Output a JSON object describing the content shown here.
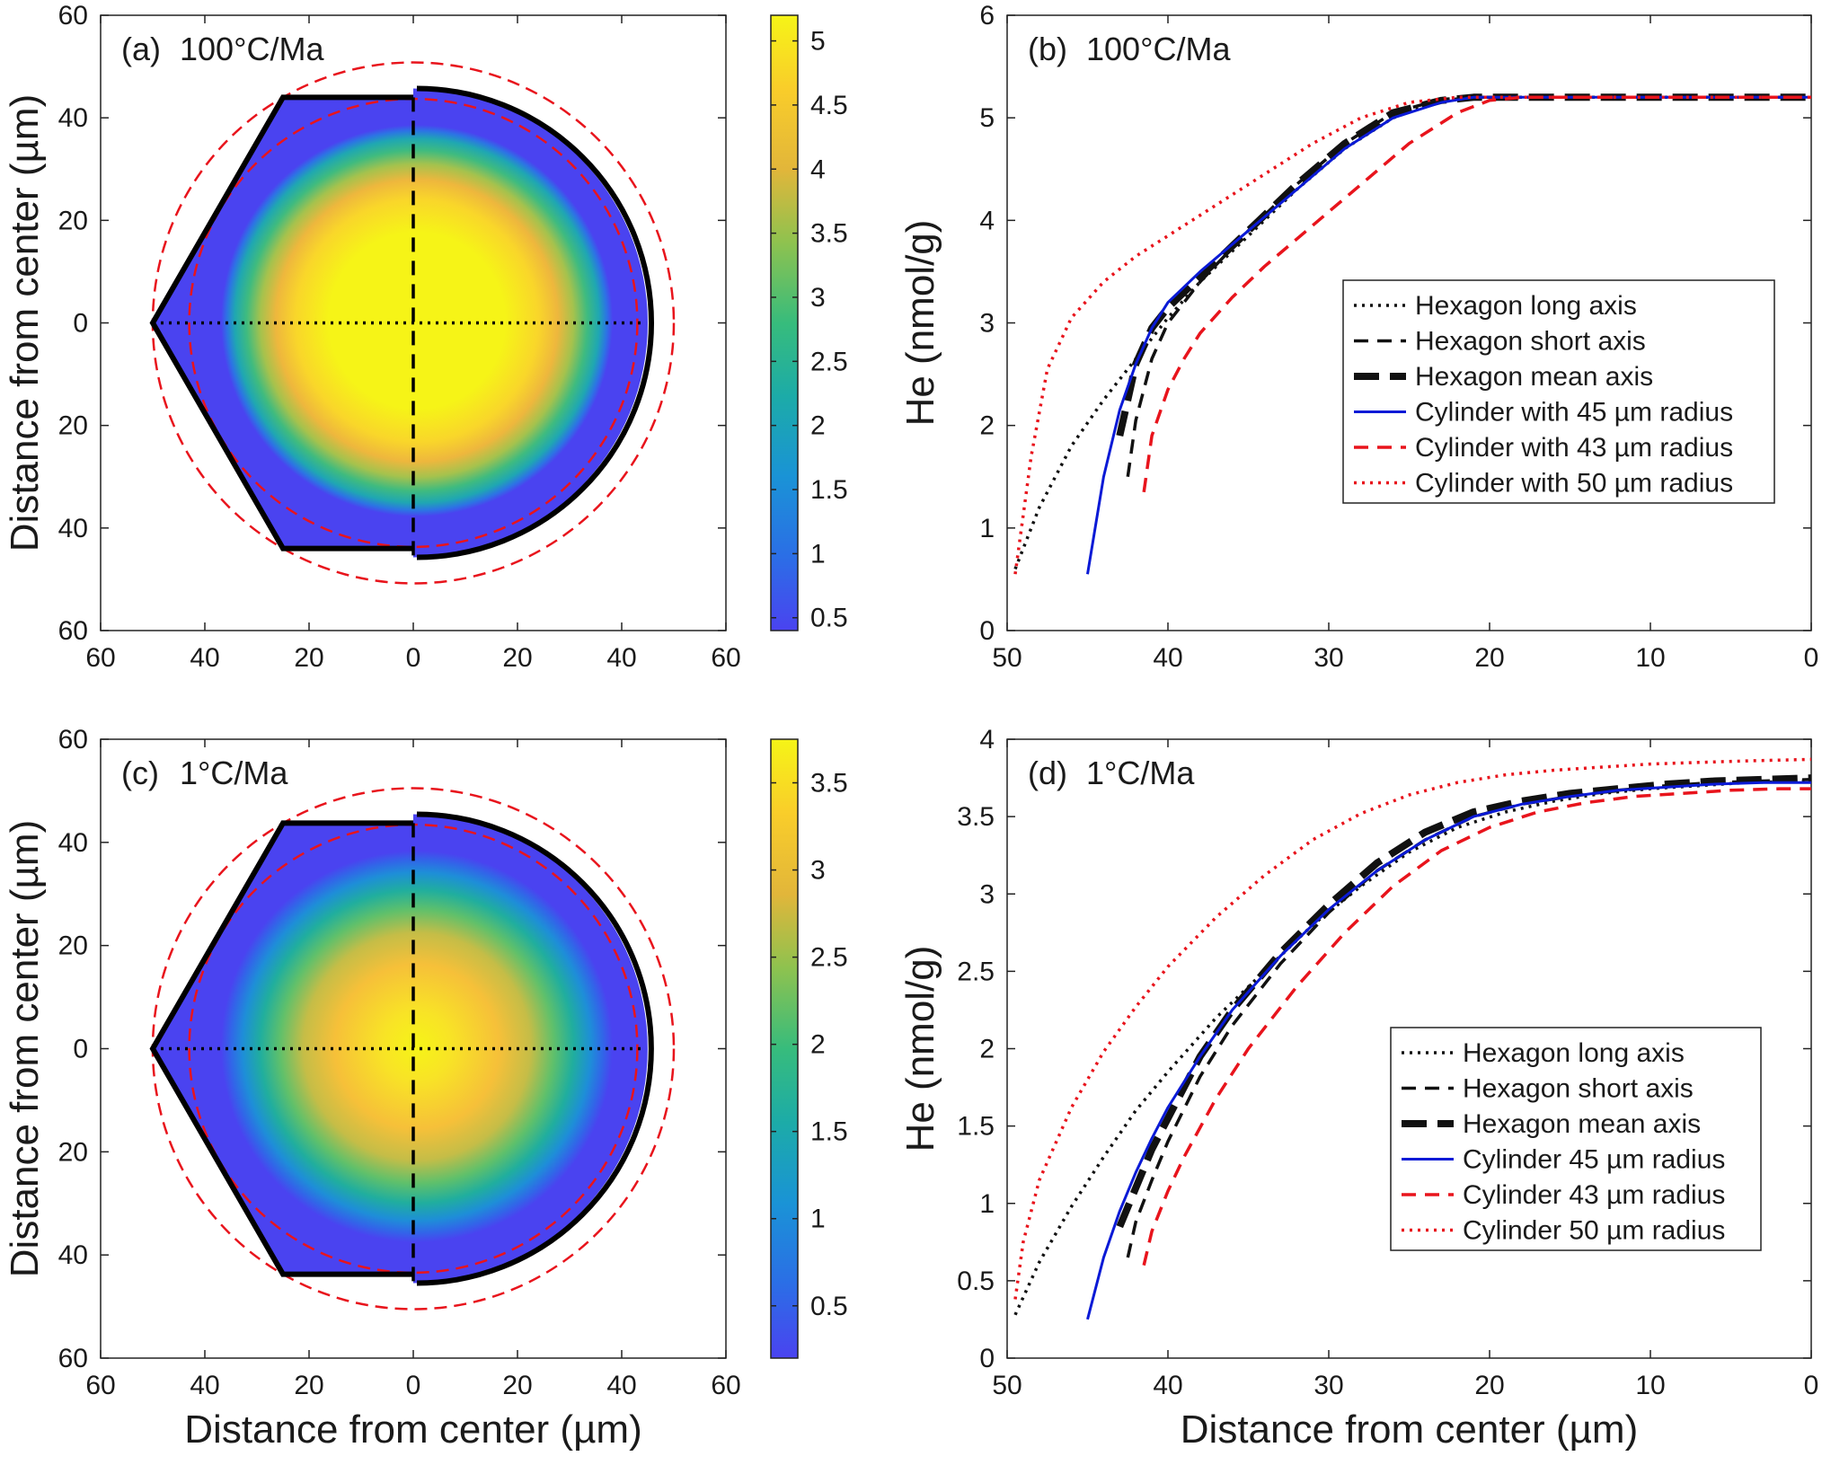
{
  "chart_data": [
    {
      "panel": "a",
      "type": "heatmap",
      "label": "(a)",
      "title": "100°C/Ma",
      "xlabel": "",
      "ylabel": "Distance from center (µm)",
      "xlim": [
        -60,
        60
      ],
      "ylim": [
        -60,
        60
      ],
      "x_ticks": [
        -60,
        -40,
        -20,
        0,
        20,
        40,
        60
      ],
      "x_tick_labels": [
        "60",
        "40",
        "20",
        "0",
        "20",
        "40",
        "60"
      ],
      "y_ticks": [
        60,
        40,
        20,
        0,
        -20,
        -40,
        -60
      ],
      "y_tick_labels": [
        "60",
        "40",
        "20",
        "0",
        "20",
        "40",
        "60"
      ],
      "hexagon_circumradius": 50,
      "hexagon_apothem": 43.3,
      "cylinder_radius": 45,
      "red_circle_radii": [
        43,
        50
      ],
      "color_min": 0.4,
      "color_max": 5.2,
      "colorbar_ticks": [
        0.5,
        1,
        1.5,
        2,
        2.5,
        3,
        3.5,
        4,
        4.5,
        5
      ],
      "colorbar_tick_labels": [
        "0.5",
        "1",
        "1.5",
        "2",
        "2.5",
        "3",
        "3.5",
        "4",
        "4.5",
        "5"
      ]
    },
    {
      "panel": "b",
      "type": "line",
      "label": "(b)",
      "title": "100°C/Ma",
      "xlabel": "",
      "ylabel": "He (nmol/g)",
      "xlim": [
        50,
        0
      ],
      "ylim": [
        0,
        6
      ],
      "x_ticks": [
        50,
        40,
        30,
        20,
        10,
        0
      ],
      "x_tick_labels": [
        "50",
        "40",
        "30",
        "20",
        "10",
        "0"
      ],
      "y_ticks": [
        0,
        1,
        2,
        3,
        4,
        5,
        6
      ],
      "y_tick_labels": [
        "0",
        "1",
        "2",
        "3",
        "4",
        "5",
        "6"
      ],
      "legend_position": "right",
      "series": [
        {
          "name": "Hexagon long axis",
          "color": "#111111",
          "style": "dotted",
          "x": [
            49.5,
            48,
            46,
            44,
            42,
            40,
            38,
            35,
            32,
            29,
            26,
            23,
            21,
            18,
            15,
            12,
            9,
            6,
            3,
            0
          ],
          "y": [
            0.6,
            1.2,
            1.8,
            2.25,
            2.65,
            3.05,
            3.4,
            3.85,
            4.3,
            4.7,
            5.0,
            5.17,
            5.2,
            5.2,
            5.2,
            5.2,
            5.2,
            5.2,
            5.2,
            5.2
          ]
        },
        {
          "name": "Hexagon short axis",
          "color": "#111111",
          "style": "dashed",
          "x": [
            42.5,
            42,
            41,
            40,
            38,
            35,
            32,
            29,
            26,
            23,
            21,
            18,
            15,
            12,
            9,
            6,
            3,
            0
          ],
          "y": [
            1.5,
            2.05,
            2.65,
            3.0,
            3.4,
            3.9,
            4.35,
            4.75,
            5.05,
            5.18,
            5.2,
            5.2,
            5.2,
            5.2,
            5.2,
            5.2,
            5.2,
            5.2
          ]
        },
        {
          "name": "Hexagon mean axis",
          "color": "#111111",
          "style": "thickdash",
          "x": [
            43,
            42.5,
            42,
            41,
            40,
            38,
            35,
            32,
            29,
            26,
            23,
            21,
            18,
            15,
            12,
            9,
            6,
            3,
            0
          ],
          "y": [
            1.9,
            2.25,
            2.6,
            2.95,
            3.15,
            3.45,
            3.9,
            4.35,
            4.75,
            5.05,
            5.17,
            5.2,
            5.2,
            5.2,
            5.2,
            5.2,
            5.2,
            5.2,
            5.2
          ]
        },
        {
          "name": "Cylinder with 45 µm radius",
          "color": "#0a1ad6",
          "style": "solid",
          "x": [
            45,
            44,
            43,
            42,
            41,
            40,
            38,
            35,
            32,
            29,
            26,
            23,
            21,
            18,
            15,
            12,
            9,
            6,
            3,
            0
          ],
          "y": [
            0.55,
            1.5,
            2.15,
            2.6,
            2.95,
            3.2,
            3.5,
            3.9,
            4.3,
            4.7,
            5.0,
            5.15,
            5.2,
            5.2,
            5.2,
            5.2,
            5.2,
            5.2,
            5.2,
            5.2
          ]
        },
        {
          "name": "Cylinder with 43 µm radius",
          "color": "#e8141c",
          "style": "dashed",
          "x": [
            41.5,
            41,
            40,
            39,
            38,
            36,
            34,
            31,
            28,
            25,
            22,
            20,
            18,
            15,
            12,
            9,
            6,
            3,
            0
          ],
          "y": [
            1.35,
            1.9,
            2.35,
            2.65,
            2.9,
            3.25,
            3.55,
            3.95,
            4.35,
            4.75,
            5.05,
            5.17,
            5.2,
            5.2,
            5.2,
            5.2,
            5.2,
            5.2,
            5.2
          ]
        },
        {
          "name": "Cylinder with 50 µm radius",
          "color": "#e8141c",
          "style": "dotted",
          "x": [
            49.5,
            48.5,
            47.5,
            46,
            44,
            42,
            40,
            37,
            34,
            31,
            28,
            25,
            22,
            20,
            18,
            15,
            12,
            9,
            6,
            3,
            0
          ],
          "y": [
            0.55,
            1.7,
            2.55,
            3.05,
            3.4,
            3.65,
            3.85,
            4.15,
            4.45,
            4.75,
            5.0,
            5.15,
            5.2,
            5.2,
            5.2,
            5.2,
            5.2,
            5.2,
            5.2,
            5.2,
            5.2
          ]
        }
      ]
    },
    {
      "panel": "c",
      "type": "heatmap",
      "label": "(c)",
      "title": "1°C/Ma",
      "xlabel": "Distance from center (µm)",
      "ylabel": "Distance from center (µm)",
      "xlim": [
        -60,
        60
      ],
      "ylim": [
        -60,
        60
      ],
      "x_ticks": [
        -60,
        -40,
        -20,
        0,
        20,
        40,
        60
      ],
      "x_tick_labels": [
        "60",
        "40",
        "20",
        "0",
        "20",
        "40",
        "60"
      ],
      "y_ticks": [
        60,
        40,
        20,
        0,
        -20,
        -40,
        -60
      ],
      "y_tick_labels": [
        "60",
        "40",
        "20",
        "0",
        "20",
        "40",
        "60"
      ],
      "hexagon_circumradius": 50,
      "hexagon_apothem": 43.3,
      "cylinder_radius": 45,
      "red_circle_radii": [
        43,
        50
      ],
      "color_min": 0.2,
      "color_max": 3.75,
      "colorbar_ticks": [
        0.5,
        1,
        1.5,
        2,
        2.5,
        3,
        3.5
      ],
      "colorbar_tick_labels": [
        "0.5",
        "1",
        "1.5",
        "2",
        "2.5",
        "3",
        "3.5"
      ]
    },
    {
      "panel": "d",
      "type": "line",
      "label": "(d)",
      "title": "1°C/Ma",
      "xlabel": "Distance from center (µm)",
      "ylabel": "He (nmol/g)",
      "xlim": [
        50,
        0
      ],
      "ylim": [
        0,
        4
      ],
      "x_ticks": [
        50,
        40,
        30,
        20,
        10,
        0
      ],
      "x_tick_labels": [
        "50",
        "40",
        "30",
        "20",
        "10",
        "0"
      ],
      "y_ticks": [
        0,
        0.5,
        1,
        1.5,
        2,
        2.5,
        3,
        3.5,
        4
      ],
      "y_tick_labels": [
        "0",
        "0.5",
        "1",
        "1.5",
        "2",
        "2.5",
        "3",
        "3.5",
        "4"
      ],
      "legend_position": "bottom-right",
      "series": [
        {
          "name": "Hexagon long axis",
          "color": "#111111",
          "style": "dotted",
          "x": [
            49.5,
            48,
            46,
            44,
            42,
            40,
            37,
            34,
            31,
            28,
            25,
            22,
            19,
            16,
            13,
            10,
            7,
            4,
            0
          ],
          "y": [
            0.28,
            0.62,
            0.98,
            1.3,
            1.6,
            1.85,
            2.2,
            2.5,
            2.8,
            3.05,
            3.27,
            3.43,
            3.53,
            3.6,
            3.65,
            3.68,
            3.7,
            3.72,
            3.73
          ]
        },
        {
          "name": "Hexagon short axis",
          "color": "#111111",
          "style": "dashed",
          "x": [
            42.5,
            42,
            41,
            40,
            38,
            36,
            33,
            30,
            27,
            24,
            21,
            18,
            15,
            12,
            9,
            6,
            3,
            0
          ],
          "y": [
            0.65,
            0.88,
            1.15,
            1.4,
            1.82,
            2.15,
            2.55,
            2.88,
            3.15,
            3.35,
            3.5,
            3.58,
            3.63,
            3.67,
            3.7,
            3.72,
            3.73,
            3.74
          ]
        },
        {
          "name": "Hexagon mean axis",
          "color": "#111111",
          "style": "thickdash",
          "x": [
            43,
            42,
            41,
            40,
            38,
            36,
            33,
            30,
            27,
            24,
            21,
            18,
            15,
            12,
            9,
            6,
            3,
            0
          ],
          "y": [
            0.85,
            1.1,
            1.35,
            1.55,
            1.95,
            2.25,
            2.62,
            2.93,
            3.2,
            3.4,
            3.53,
            3.6,
            3.65,
            3.68,
            3.71,
            3.73,
            3.74,
            3.75
          ]
        },
        {
          "name": "Cylinder 45 µm radius",
          "color": "#0a1ad6",
          "style": "solid",
          "x": [
            45,
            44,
            43,
            42,
            41,
            40,
            38,
            36,
            33,
            30,
            27,
            24,
            21,
            18,
            15,
            12,
            9,
            6,
            3,
            0
          ],
          "y": [
            0.25,
            0.65,
            0.95,
            1.2,
            1.42,
            1.62,
            1.95,
            2.25,
            2.6,
            2.9,
            3.15,
            3.35,
            3.5,
            3.58,
            3.63,
            3.67,
            3.69,
            3.71,
            3.72,
            3.72
          ]
        },
        {
          "name": "Cylinder 43 µm radius",
          "color": "#e8141c",
          "style": "dashed",
          "x": [
            41.5,
            41,
            40,
            39,
            37,
            35,
            32,
            29,
            26,
            23,
            20,
            17,
            14,
            11,
            8,
            5,
            2,
            0
          ],
          "y": [
            0.6,
            0.82,
            1.08,
            1.3,
            1.68,
            2.0,
            2.4,
            2.75,
            3.05,
            3.28,
            3.43,
            3.53,
            3.59,
            3.63,
            3.65,
            3.67,
            3.68,
            3.68
          ]
        },
        {
          "name": "Cylinder 50 µm radius",
          "color": "#e8141c",
          "style": "dotted",
          "x": [
            49.5,
            49,
            48,
            46,
            44,
            42,
            40,
            37,
            34,
            31,
            28,
            25,
            22,
            19,
            16,
            13,
            10,
            7,
            4,
            0
          ],
          "y": [
            0.38,
            0.75,
            1.15,
            1.62,
            1.98,
            2.27,
            2.53,
            2.85,
            3.12,
            3.35,
            3.52,
            3.64,
            3.72,
            3.77,
            3.8,
            3.82,
            3.84,
            3.85,
            3.86,
            3.87
          ]
        }
      ]
    }
  ]
}
